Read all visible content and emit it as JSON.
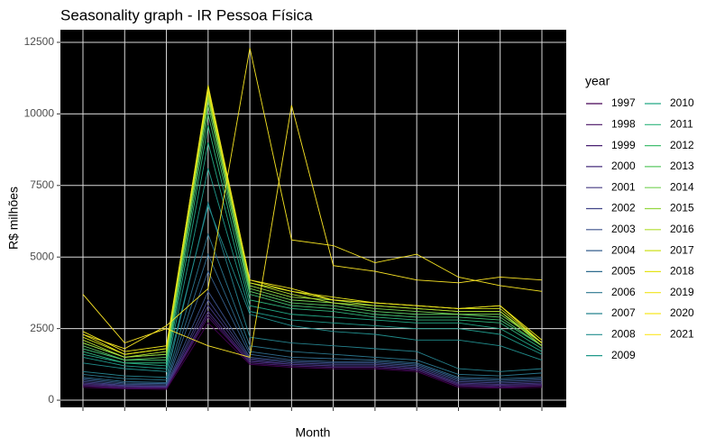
{
  "chart_data": {
    "type": "line",
    "title": "Seasonality graph - IR  Pessoa Física",
    "x_label": "Month",
    "y_label": "R$ milhões",
    "legend_title": "year",
    "categories": [
      null,
      null,
      null,
      null,
      null,
      null,
      null,
      null,
      null,
      null,
      null,
      null
    ],
    "ylim": [
      -250,
      12940
    ],
    "yticks": [
      0,
      2500,
      5000,
      7500,
      10000,
      12500
    ],
    "grid": true,
    "series": [
      {
        "name": "1997",
        "color": "#440154",
        "values": [
          450,
          400,
          380,
          2700,
          1250,
          1150,
          1100,
          1100,
          1000,
          450,
          420,
          450
        ]
      },
      {
        "name": "1998",
        "color": "#471063",
        "values": [
          500,
          420,
          420,
          2900,
          1300,
          1200,
          1150,
          1150,
          1050,
          500,
          450,
          500
        ]
      },
      {
        "name": "1999",
        "color": "#482071",
        "values": [
          520,
          450,
          440,
          3000,
          1300,
          1200,
          1150,
          1150,
          1050,
          520,
          480,
          520
        ]
      },
      {
        "name": "2000",
        "color": "#472D7B",
        "values": [
          560,
          480,
          460,
          3100,
          1350,
          1250,
          1200,
          1200,
          1100,
          560,
          520,
          560
        ]
      },
      {
        "name": "2001",
        "color": "#453882",
        "values": [
          600,
          500,
          480,
          3300,
          1400,
          1250,
          1200,
          1200,
          1100,
          600,
          550,
          600
        ]
      },
      {
        "name": "2002",
        "color": "#414487",
        "values": [
          650,
          520,
          500,
          3500,
          1450,
          1300,
          1250,
          1250,
          1150,
          650,
          600,
          650
        ]
      },
      {
        "name": "2003",
        "color": "#3B528B",
        "values": [
          700,
          560,
          540,
          3800,
          1500,
          1350,
          1300,
          1300,
          1200,
          700,
          650,
          700
        ]
      },
      {
        "name": "2004",
        "color": "#355F8D",
        "values": [
          750,
          600,
          580,
          4500,
          1600,
          1400,
          1350,
          1350,
          1250,
          750,
          700,
          750
        ]
      },
      {
        "name": "2005",
        "color": "#2F6B8E",
        "values": [
          800,
          650,
          620,
          5100,
          1700,
          1500,
          1450,
          1400,
          1300,
          800,
          750,
          800
        ]
      },
      {
        "name": "2006",
        "color": "#2A768E",
        "values": [
          900,
          750,
          700,
          5800,
          1900,
          1700,
          1600,
          1500,
          1400,
          900,
          850,
          950
        ]
      },
      {
        "name": "2007",
        "color": "#25828E",
        "values": [
          1000,
          850,
          800,
          6900,
          2200,
          2000,
          1900,
          1800,
          1700,
          1100,
          1000,
          1100
        ]
      },
      {
        "name": "2008",
        "color": "#218E8D",
        "values": [
          1300,
          1100,
          1000,
          6800,
          3000,
          2600,
          2400,
          2300,
          2100,
          2100,
          1900,
          1400
        ]
      },
      {
        "name": "2009",
        "color": "#1F998A",
        "values": [
          1500,
          1200,
          1100,
          8100,
          3100,
          2800,
          2700,
          2600,
          2500,
          2500,
          2300,
          1600
        ]
      },
      {
        "name": "2010",
        "color": "#22A785",
        "values": [
          1600,
          1300,
          1200,
          9000,
          3300,
          3000,
          2900,
          2800,
          2700,
          2700,
          2500,
          1700
        ]
      },
      {
        "name": "2011",
        "color": "#2FB47C",
        "values": [
          1700,
          1300,
          1300,
          9600,
          3500,
          3200,
          3100,
          2900,
          2800,
          2800,
          2700,
          1800
        ]
      },
      {
        "name": "2012",
        "color": "#43BF71",
        "values": [
          1800,
          1400,
          1400,
          10000,
          3700,
          3300,
          3200,
          3000,
          2900,
          2900,
          2800,
          1900
        ]
      },
      {
        "name": "2013",
        "color": "#5BC863",
        "values": [
          1900,
          1400,
          1500,
          10300,
          3800,
          3400,
          3300,
          3100,
          3000,
          3000,
          2900,
          1900
        ]
      },
      {
        "name": "2014",
        "color": "#75D054",
        "values": [
          2000,
          1500,
          1600,
          10500,
          3900,
          3500,
          3400,
          3200,
          3100,
          3000,
          3000,
          2000
        ]
      },
      {
        "name": "2015",
        "color": "#93D741",
        "values": [
          2000,
          1500,
          1600,
          10600,
          4000,
          3600,
          3500,
          3300,
          3200,
          3100,
          3100,
          2000
        ]
      },
      {
        "name": "2016",
        "color": "#B0DD2F",
        "values": [
          2100,
          1500,
          1700,
          10700,
          4100,
          3700,
          3400,
          3300,
          3200,
          3100,
          3100,
          1900
        ]
      },
      {
        "name": "2017",
        "color": "#CDE11D",
        "values": [
          2200,
          1600,
          1800,
          10800,
          4100,
          3800,
          3500,
          3400,
          3300,
          3200,
          3200,
          2000
        ]
      },
      {
        "name": "2018",
        "color": "#E5E419",
        "values": [
          2300,
          1600,
          1800,
          11000,
          4200,
          3800,
          3600,
          3400,
          3300,
          3200,
          3300,
          2100
        ]
      },
      {
        "name": "2019",
        "color": "#F0E51C",
        "values": [
          2400,
          1700,
          1900,
          10900,
          4200,
          3900,
          3500,
          3400,
          3300,
          3200,
          3300,
          2000
        ]
      },
      {
        "name": "2020",
        "color": "#F8E621",
        "values": [
          2300,
          1800,
          2600,
          3900,
          12300,
          5600,
          5400,
          4800,
          5100,
          4300,
          4000,
          3800
        ]
      },
      {
        "name": "2021",
        "color": "#FDE725",
        "values": [
          3700,
          2000,
          2500,
          1900,
          1500,
          10300,
          4700,
          4500,
          4200,
          4100,
          4300,
          4200
        ]
      }
    ]
  }
}
